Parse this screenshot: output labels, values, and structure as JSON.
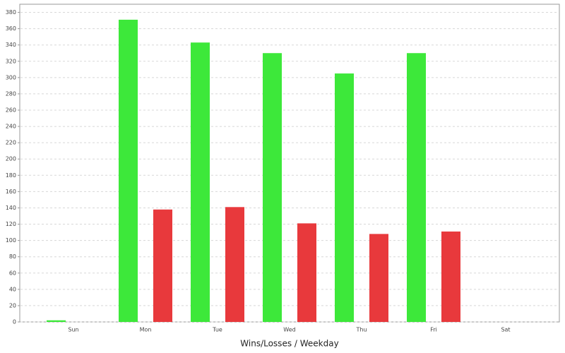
{
  "chart_data": {
    "type": "bar",
    "x_label": "Wins/Losses / Weekday",
    "categories": [
      "Sun",
      "Mon",
      "Tue",
      "Wed",
      "Thu",
      "Fri",
      "Sat"
    ],
    "series": [
      {
        "color": "#3de83a",
        "values": [
          2,
          371,
          343,
          330,
          305,
          330,
          0
        ]
      },
      {
        "color": "#e8393c",
        "values": [
          0,
          138,
          141,
          121,
          108,
          111,
          0
        ]
      }
    ],
    "ylim": [
      0,
      390
    ],
    "yticks": [
      0,
      20,
      40,
      60,
      80,
      100,
      120,
      140,
      160,
      180,
      200,
      220,
      240,
      260,
      280,
      300,
      320,
      340,
      360,
      380
    ],
    "grid": true
  }
}
